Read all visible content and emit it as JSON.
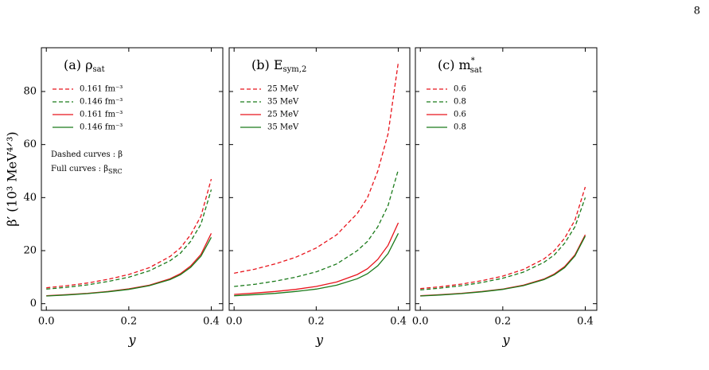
{
  "page_number": "8",
  "chart_data": [
    {
      "type": "line",
      "title": "(a) ρ",
      "title_sub": "sat",
      "ylabel": "β′ (10³ MeV⁴ᐟ³)",
      "xlabel": "y",
      "annotations": [
        {
          "text": "Dashed curves : β"
        },
        {
          "text": "Full curves : β",
          "sub": "SRC"
        }
      ],
      "x": [
        0,
        0.05,
        0.1,
        0.15,
        0.2,
        0.25,
        0.3,
        0.325,
        0.35,
        0.375,
        0.4
      ],
      "xlim": [
        -0.012,
        0.428
      ],
      "ylim": [
        -2.5,
        96.5
      ],
      "xticks": [
        {
          "value": 0,
          "label": "0.0"
        },
        0.2,
        0.4
      ],
      "yticks": [
        0,
        20,
        40,
        60,
        80
      ],
      "show_yticklabels": true,
      "series": [
        {
          "name": "0.161 fm⁻³",
          "color": "#e8141c",
          "linestyle": "dashed",
          "values": [
            6.0,
            6.8,
            7.8,
            9.2,
            11.0,
            13.6,
            17.8,
            21,
            26,
            33,
            47
          ]
        },
        {
          "name": "0.146 fm⁻³",
          "color": "#1a7a1a",
          "linestyle": "dashed",
          "values": [
            5.5,
            6.2,
            7.1,
            8.4,
            10.0,
            12.4,
            16.2,
            19,
            23.5,
            30,
            43
          ]
        },
        {
          "name": "0.161 fm⁻³",
          "color": "#e8141c",
          "linestyle": "solid",
          "values": [
            3.0,
            3.4,
            3.9,
            4.6,
            5.6,
            7.0,
            9.4,
            11.3,
            14.2,
            18.6,
            26.5
          ]
        },
        {
          "name": "0.146 fm⁻³",
          "color": "#1a7a1a",
          "linestyle": "solid",
          "values": [
            2.9,
            3.3,
            3.8,
            4.5,
            5.4,
            6.8,
            9.1,
            10.9,
            13.7,
            17.9,
            25
          ]
        }
      ]
    },
    {
      "type": "line",
      "title": "(b) E",
      "title_sub": "sym,2",
      "xlabel": "y",
      "x": [
        0,
        0.05,
        0.1,
        0.15,
        0.2,
        0.25,
        0.3,
        0.325,
        0.35,
        0.375,
        0.4
      ],
      "xlim": [
        -0.012,
        0.428
      ],
      "ylim": [
        -2.5,
        96.5
      ],
      "xticks": [
        {
          "value": 0,
          "label": "0.0"
        },
        0.2,
        0.4
      ],
      "yticks": [
        0,
        20,
        40,
        60,
        80
      ],
      "show_yticklabels": false,
      "series": [
        {
          "name": "25 MeV",
          "color": "#e8141c",
          "linestyle": "dashed",
          "values": [
            11.5,
            13,
            15,
            17.5,
            21,
            26,
            34,
            40,
            50,
            64,
            91
          ]
        },
        {
          "name": "35 MeV",
          "color": "#1a7a1a",
          "linestyle": "dashed",
          "values": [
            6.5,
            7.3,
            8.5,
            10,
            12,
            15,
            20,
            23.5,
            29,
            37,
            50.5
          ]
        },
        {
          "name": "25 MeV",
          "color": "#e8141c",
          "linestyle": "solid",
          "values": [
            3.5,
            4,
            4.6,
            5.4,
            6.5,
            8.2,
            11,
            13.2,
            16.7,
            22,
            30.5
          ]
        },
        {
          "name": "35 MeV",
          "color": "#1a7a1a",
          "linestyle": "solid",
          "values": [
            3.0,
            3.4,
            3.9,
            4.6,
            5.5,
            7,
            9.4,
            11.3,
            14.3,
            18.9,
            26.5
          ]
        }
      ]
    },
    {
      "type": "line",
      "title": "(c) m",
      "title_sup": "*",
      "title_sub": "sat",
      "xlabel": "y",
      "x": [
        0,
        0.05,
        0.1,
        0.15,
        0.2,
        0.25,
        0.3,
        0.325,
        0.35,
        0.375,
        0.4
      ],
      "xlim": [
        -0.012,
        0.428
      ],
      "ylim": [
        -2.5,
        96.5
      ],
      "xticks": [
        {
          "value": 0,
          "label": "0.0"
        },
        0.2,
        0.4
      ],
      "yticks": [
        0,
        20,
        40,
        60,
        80
      ],
      "show_yticklabels": false,
      "series": [
        {
          "name": "0.6",
          "color": "#e8141c",
          "linestyle": "dashed",
          "values": [
            5.7,
            6.4,
            7.4,
            8.7,
            10.4,
            12.9,
            16.9,
            20,
            24.7,
            31.5,
            44
          ]
        },
        {
          "name": "0.8",
          "color": "#1a7a1a",
          "linestyle": "dashed",
          "values": [
            5.2,
            5.9,
            6.8,
            8,
            9.6,
            11.9,
            15.6,
            18.4,
            22.8,
            29,
            40
          ]
        },
        {
          "name": "0.6",
          "color": "#e8141c",
          "linestyle": "solid",
          "values": [
            3.0,
            3.4,
            3.9,
            4.6,
            5.5,
            7,
            9.3,
            11.2,
            14,
            18.4,
            26
          ]
        },
        {
          "name": "0.8",
          "color": "#1a7a1a",
          "linestyle": "solid",
          "values": [
            2.9,
            3.3,
            3.8,
            4.5,
            5.4,
            6.8,
            9.1,
            10.9,
            13.6,
            18,
            25.5
          ]
        }
      ]
    }
  ]
}
